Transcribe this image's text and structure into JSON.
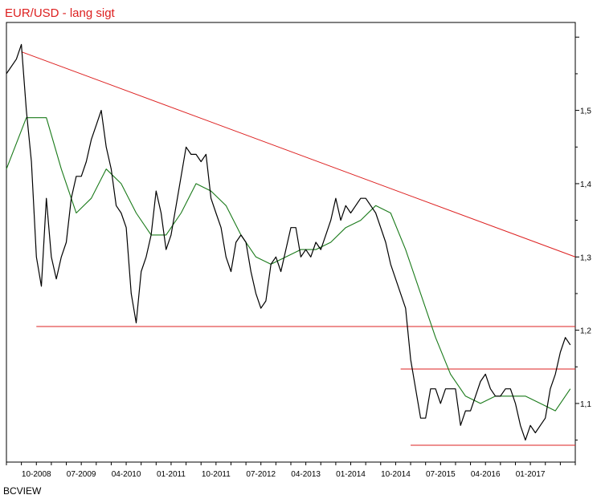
{
  "source_label": "BCVIEW",
  "chart_data": {
    "type": "line",
    "title": "EUR/USD - lang sigt",
    "xlabel": "",
    "ylabel": "",
    "ylim": [
      1.02,
      1.62
    ],
    "y_ticks": [
      {
        "value": 1.1,
        "label": "1,1"
      },
      {
        "value": 1.2,
        "label": "1,2"
      },
      {
        "value": 1.3,
        "label": "1,3"
      },
      {
        "value": 1.4,
        "label": "1,4"
      },
      {
        "value": 1.5,
        "label": "1,5"
      }
    ],
    "x_range": [
      "2008-04",
      "2017-10"
    ],
    "x_ticks": [
      "10-2008",
      "07-2009",
      "04-2010",
      "01-2011",
      "10-2011",
      "07-2012",
      "04-2013",
      "01-2014",
      "10-2014",
      "07-2015",
      "04-2016",
      "01-2017"
    ],
    "grid": false,
    "colors": {
      "price": "#000000",
      "moving_average": "#1a7a1a",
      "trendlines": "#dd2020",
      "title": "#dd2020"
    },
    "series": [
      {
        "role": "price",
        "x": [
          "2008-04",
          "2008-06",
          "2008-07",
          "2008-08",
          "2008-09",
          "2008-10",
          "2008-11",
          "2008-12",
          "2009-01",
          "2009-02",
          "2009-03",
          "2009-04",
          "2009-05",
          "2009-06",
          "2009-07",
          "2009-08",
          "2009-09",
          "2009-10",
          "2009-11",
          "2009-12",
          "2010-01",
          "2010-02",
          "2010-03",
          "2010-04",
          "2010-05",
          "2010-06",
          "2010-07",
          "2010-08",
          "2010-09",
          "2010-10",
          "2010-11",
          "2010-12",
          "2011-01",
          "2011-02",
          "2011-03",
          "2011-04",
          "2011-05",
          "2011-06",
          "2011-07",
          "2011-08",
          "2011-09",
          "2011-10",
          "2011-11",
          "2011-12",
          "2012-01",
          "2012-02",
          "2012-03",
          "2012-04",
          "2012-05",
          "2012-06",
          "2012-07",
          "2012-08",
          "2012-09",
          "2012-10",
          "2012-11",
          "2012-12",
          "2013-01",
          "2013-02",
          "2013-03",
          "2013-04",
          "2013-05",
          "2013-06",
          "2013-07",
          "2013-08",
          "2013-09",
          "2013-10",
          "2013-11",
          "2013-12",
          "2014-01",
          "2014-02",
          "2014-03",
          "2014-04",
          "2014-05",
          "2014-06",
          "2014-07",
          "2014-08",
          "2014-09",
          "2014-10",
          "2014-11",
          "2014-12",
          "2015-01",
          "2015-02",
          "2015-03",
          "2015-04",
          "2015-05",
          "2015-06",
          "2015-07",
          "2015-08",
          "2015-09",
          "2015-10",
          "2015-11",
          "2015-12",
          "2016-01",
          "2016-02",
          "2016-03",
          "2016-04",
          "2016-05",
          "2016-06",
          "2016-07",
          "2016-08",
          "2016-09",
          "2016-10",
          "2016-11",
          "2016-12",
          "2017-01",
          "2017-02",
          "2017-03",
          "2017-04",
          "2017-05",
          "2017-06",
          "2017-07",
          "2017-08",
          "2017-09"
        ],
        "values": [
          1.55,
          1.57,
          1.59,
          1.5,
          1.43,
          1.3,
          1.26,
          1.38,
          1.3,
          1.27,
          1.3,
          1.32,
          1.38,
          1.41,
          1.41,
          1.43,
          1.46,
          1.48,
          1.5,
          1.45,
          1.42,
          1.37,
          1.36,
          1.34,
          1.25,
          1.21,
          1.28,
          1.3,
          1.33,
          1.39,
          1.36,
          1.31,
          1.33,
          1.37,
          1.41,
          1.45,
          1.44,
          1.44,
          1.43,
          1.44,
          1.38,
          1.36,
          1.34,
          1.3,
          1.28,
          1.32,
          1.33,
          1.32,
          1.28,
          1.25,
          1.23,
          1.24,
          1.29,
          1.3,
          1.28,
          1.31,
          1.34,
          1.34,
          1.3,
          1.31,
          1.3,
          1.32,
          1.31,
          1.33,
          1.35,
          1.38,
          1.35,
          1.37,
          1.36,
          1.37,
          1.38,
          1.38,
          1.37,
          1.36,
          1.34,
          1.32,
          1.29,
          1.27,
          1.25,
          1.23,
          1.16,
          1.12,
          1.08,
          1.08,
          1.12,
          1.12,
          1.1,
          1.12,
          1.12,
          1.12,
          1.07,
          1.09,
          1.09,
          1.11,
          1.13,
          1.14,
          1.12,
          1.11,
          1.11,
          1.12,
          1.12,
          1.1,
          1.07,
          1.05,
          1.07,
          1.06,
          1.07,
          1.08,
          1.12,
          1.14,
          1.17,
          1.19,
          1.18
        ]
      },
      {
        "role": "moving_average",
        "x": [
          "2008-04",
          "2008-08",
          "2008-12",
          "2009-03",
          "2009-06",
          "2009-09",
          "2009-12",
          "2010-03",
          "2010-06",
          "2010-09",
          "2010-12",
          "2011-03",
          "2011-06",
          "2011-09",
          "2011-12",
          "2012-03",
          "2012-06",
          "2012-09",
          "2012-12",
          "2013-03",
          "2013-06",
          "2013-09",
          "2013-12",
          "2014-03",
          "2014-06",
          "2014-09",
          "2014-12",
          "2015-03",
          "2015-06",
          "2015-09",
          "2015-12",
          "2016-03",
          "2016-06",
          "2016-09",
          "2016-12",
          "2017-03",
          "2017-06",
          "2017-09"
        ],
        "values": [
          1.42,
          1.49,
          1.49,
          1.42,
          1.36,
          1.38,
          1.42,
          1.4,
          1.36,
          1.33,
          1.33,
          1.36,
          1.4,
          1.39,
          1.37,
          1.33,
          1.3,
          1.29,
          1.3,
          1.31,
          1.31,
          1.32,
          1.34,
          1.35,
          1.37,
          1.36,
          1.31,
          1.25,
          1.19,
          1.14,
          1.11,
          1.1,
          1.11,
          1.11,
          1.11,
          1.1,
          1.09,
          1.12
        ]
      }
    ],
    "trendlines": [
      {
        "kind": "falling-resistance",
        "from": {
          "x": "2008-07",
          "y": 1.58
        },
        "to": {
          "x": "2017-10",
          "y": 1.3
        }
      },
      {
        "kind": "horizontal",
        "y": 1.205,
        "from": "2008-10",
        "to": "2017-10"
      },
      {
        "kind": "horizontal",
        "y": 1.147,
        "from": "2014-11",
        "to": "2017-10"
      },
      {
        "kind": "horizontal",
        "y": 1.043,
        "from": "2015-01",
        "to": "2017-10"
      }
    ]
  }
}
